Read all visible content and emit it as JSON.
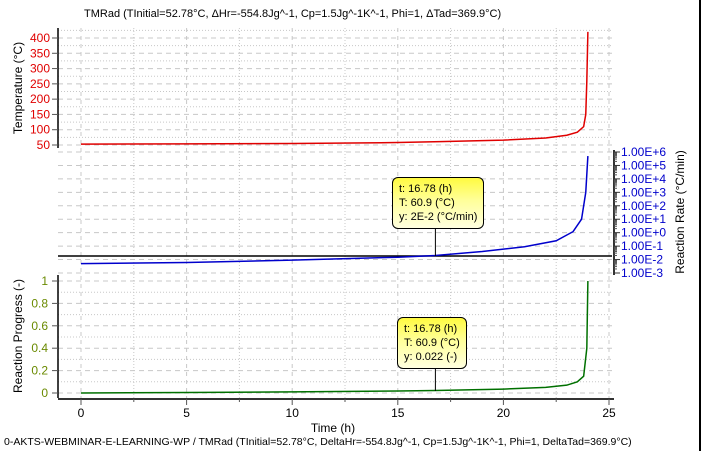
{
  "title": "TMRad (TInitial=52.78°C, ΔHr=-554.8Jg^-1, Cp=1.5Jg^-1K^-1, Phi=1, ΔTad=369.9°C)",
  "footer": "0-AKTS-WEBMINAR-E-LEARNING-WP / TMRad (TInitial=52.78°C, DeltaHr=-554.8Jg^-1, Cp=1.5Jg^-1K^-1, Phi=1, DeltaTad=369.9°C)",
  "colors": {
    "temperature": "#e00000",
    "rate": "#0000cc",
    "progress": "#007000",
    "grid": "#c8c8c8",
    "tooltip": "#ffff66"
  },
  "tooltips": {
    "rate": {
      "t": "t: 16.78 (h)",
      "T": "T: 60.9 (°C)",
      "y": "y: 2E-2 (°C/min)"
    },
    "progress": {
      "t": "t: 16.78 (h)",
      "T": "T: 60.9 (°C)",
      "y": "y: 0.022 (-)"
    }
  },
  "chart_data": [
    {
      "type": "line",
      "title": "Temperature",
      "xlabel": "Time (h)",
      "ylabel": "Temperature (°C)",
      "x_ticks": [
        "0",
        "5",
        "10",
        "15",
        "20",
        "25"
      ],
      "y_ticks": [
        "50",
        "100",
        "150",
        "200",
        "250",
        "300",
        "350",
        "400"
      ],
      "ylim": [
        50,
        420
      ],
      "xlim": [
        -1,
        25
      ],
      "grid": true,
      "series": [
        {
          "name": "Temperature",
          "color": "#e00000",
          "x": [
            0,
            5,
            10,
            15,
            17,
            20,
            22,
            23,
            23.5,
            23.8,
            23.9,
            23.95,
            24.0
          ],
          "y": [
            52.8,
            53.5,
            55,
            58,
            61,
            66,
            73,
            82,
            92,
            110,
            150,
            260,
            420
          ]
        }
      ]
    },
    {
      "type": "line",
      "title": "Reaction Rate",
      "xlabel": "Time (h)",
      "ylabel": "Reaction Rate (°C/min)",
      "y_scale": "log",
      "y_ticks": [
        "1.00E-3",
        "1.00E-2",
        "1.00E-1",
        "1.00E+0",
        "1.00E+1",
        "1.00E+2",
        "1.00E+3",
        "1.00E+4",
        "1.00E+5",
        "1.00E+6"
      ],
      "ylim": [
        0.001,
        1000000
      ],
      "grid": true,
      "series": [
        {
          "name": "Reaction Rate",
          "color": "#0000cc",
          "x": [
            0,
            5,
            10,
            15,
            16.78,
            19,
            21,
            22.5,
            23.3,
            23.7,
            23.9,
            24.0
          ],
          "y": [
            0.005,
            0.006,
            0.009,
            0.015,
            0.02,
            0.04,
            0.09,
            0.25,
            1.2,
            10,
            1000,
            500000
          ]
        }
      ]
    },
    {
      "type": "line",
      "title": "Reaction Progress",
      "xlabel": "Time (h)",
      "ylabel": "Reaction Progress (-)",
      "x_ticks": [
        "0",
        "5",
        "10",
        "15",
        "20",
        "25"
      ],
      "y_ticks": [
        "0",
        "0.2",
        "0.4",
        "0.6",
        "0.8",
        "1"
      ],
      "ylim": [
        0,
        1
      ],
      "grid": true,
      "series": [
        {
          "name": "Reaction Progress",
          "color": "#007000",
          "x": [
            0,
            5,
            10,
            15,
            16.78,
            20,
            22,
            23,
            23.5,
            23.8,
            23.95,
            24.0
          ],
          "y": [
            0.0,
            0.004,
            0.01,
            0.018,
            0.022,
            0.035,
            0.05,
            0.07,
            0.1,
            0.15,
            0.4,
            1.0
          ]
        }
      ]
    }
  ]
}
